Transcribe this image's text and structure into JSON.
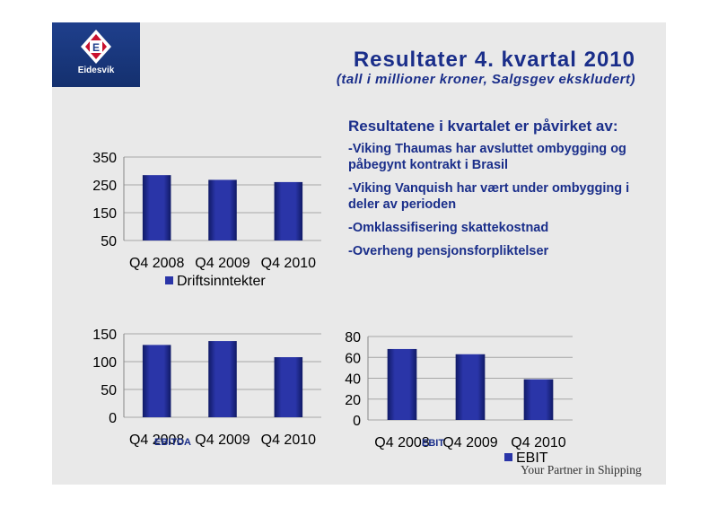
{
  "header": {
    "logo_text": "Eidesvik",
    "logo_letter": "E",
    "title": "Resultater 4. kvartal 2010",
    "subtitle": "(tall i millioner kroner, Salgsgev ekskludert)"
  },
  "notes": {
    "heading": "Resultatene i kvartalet er påvirket av:",
    "items": [
      "-Viking Thaumas har avsluttet ombygging og påbegynt kontrakt i Brasil",
      "-Viking Vanquish har vært under ombygging i deler av perioden",
      "-Omklassifisering skattekostnad",
      "-Overheng pensjonsforpliktelser"
    ]
  },
  "labels": {
    "ebitda": "EBITDA",
    "ebit": "EBIT"
  },
  "footer": {
    "tagline": "Your Partner in Shipping"
  },
  "colors": {
    "bar": "#2a35a8",
    "bar_dark": "#101a66",
    "title": "#1a2e8a",
    "logo_bg": "#1f3f8c"
  },
  "chart_data": [
    {
      "type": "bar",
      "categories": [
        "Q4 2008",
        "Q4 2009",
        "Q4 2010"
      ],
      "series": [
        {
          "name": "Driftsinntekter",
          "values": [
            285,
            268,
            260
          ]
        }
      ],
      "yticks": [
        50,
        150,
        250,
        350
      ],
      "ylim": [
        50,
        350
      ],
      "legend": "bottom",
      "grid": true
    },
    {
      "type": "bar",
      "categories": [
        "Q4 2008",
        "Q4 2009",
        "Q4 2010"
      ],
      "series": [
        {
          "values": [
            130,
            137,
            108
          ]
        }
      ],
      "yticks": [
        0,
        50,
        100,
        150
      ],
      "ylim": [
        0,
        150
      ],
      "grid": true
    },
    {
      "type": "bar",
      "categories": [
        "Q4 2008",
        "Q4 2009",
        "Q4 2010"
      ],
      "series": [
        {
          "name": "EBIT",
          "values": [
            68,
            63,
            39
          ]
        }
      ],
      "yticks": [
        0,
        20,
        40,
        60,
        80
      ],
      "ylim": [
        0,
        80
      ],
      "legend": "bottom",
      "grid": true
    }
  ]
}
